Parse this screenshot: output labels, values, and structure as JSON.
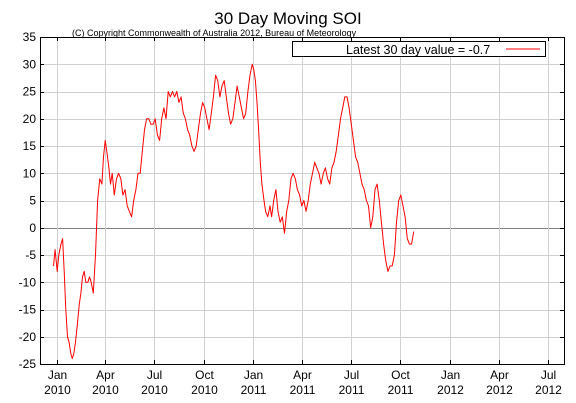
{
  "chart_data": {
    "type": "line",
    "title": "30 Day Moving SOI",
    "subtitle": "(C) Copyright Commonwealth of Australia 2012, Bureau of Meteorology",
    "xlabel": "",
    "ylabel": "",
    "ylim": [
      -25,
      35
    ],
    "yticks": [
      35,
      30,
      25,
      20,
      15,
      10,
      5,
      0,
      -5,
      -10,
      -15,
      -20,
      -25
    ],
    "xlim": [
      "2009-12-01",
      "2012-07-31"
    ],
    "xticks": [
      {
        "date": "2010-01-01",
        "label": [
          "Jan",
          "2010"
        ]
      },
      {
        "date": "2010-04-01",
        "label": [
          "Apr",
          "2010"
        ]
      },
      {
        "date": "2010-07-01",
        "label": [
          "Jul",
          "2010"
        ]
      },
      {
        "date": "2010-10-01",
        "label": [
          "Oct",
          "2010"
        ]
      },
      {
        "date": "2011-01-01",
        "label": [
          "Jan",
          "2011"
        ]
      },
      {
        "date": "2011-04-01",
        "label": [
          "Apr",
          "2011"
        ]
      },
      {
        "date": "2011-07-01",
        "label": [
          "Jul",
          "2011"
        ]
      },
      {
        "date": "2011-10-01",
        "label": [
          "Oct",
          "2011"
        ]
      },
      {
        "date": "2012-01-01",
        "label": [
          "Jan",
          "2012"
        ]
      },
      {
        "date": "2012-04-01",
        "label": [
          "Apr",
          "2012"
        ]
      },
      {
        "date": "2012-07-01",
        "label": [
          "Jul",
          "2012"
        ]
      }
    ],
    "grid": true,
    "zero_line": true,
    "legend_position": "top-right",
    "series": [
      {
        "name": "Latest 30 day value = -0.7",
        "color": "#ff0000",
        "points": [
          [
            "2009-12-26",
            -7
          ],
          [
            "2009-12-29",
            -4
          ],
          [
            "2010-01-02",
            -8
          ],
          [
            "2010-01-05",
            -5
          ],
          [
            "2010-01-09",
            -3
          ],
          [
            "2010-01-12",
            -2
          ],
          [
            "2010-01-15",
            -8
          ],
          [
            "2010-01-18",
            -15
          ],
          [
            "2010-01-21",
            -20
          ],
          [
            "2010-01-24",
            -21
          ],
          [
            "2010-01-27",
            -23
          ],
          [
            "2010-01-30",
            -24
          ],
          [
            "2010-02-02",
            -23
          ],
          [
            "2010-02-05",
            -21
          ],
          [
            "2010-02-08",
            -18
          ],
          [
            "2010-02-12",
            -14
          ],
          [
            "2010-02-15",
            -12
          ],
          [
            "2010-02-18",
            -9
          ],
          [
            "2010-02-21",
            -8
          ],
          [
            "2010-02-24",
            -10
          ],
          [
            "2010-02-28",
            -10
          ],
          [
            "2010-03-03",
            -9
          ],
          [
            "2010-03-06",
            -10
          ],
          [
            "2010-03-10",
            -12
          ],
          [
            "2010-03-14",
            -5
          ],
          [
            "2010-03-18",
            5
          ],
          [
            "2010-03-22",
            9
          ],
          [
            "2010-03-26",
            8
          ],
          [
            "2010-03-29",
            13
          ],
          [
            "2010-04-01",
            16
          ],
          [
            "2010-04-04",
            14
          ],
          [
            "2010-04-08",
            11
          ],
          [
            "2010-04-11",
            8
          ],
          [
            "2010-04-14",
            10
          ],
          [
            "2010-04-18",
            6
          ],
          [
            "2010-04-22",
            9
          ],
          [
            "2010-04-26",
            10
          ],
          [
            "2010-04-30",
            9
          ],
          [
            "2010-05-04",
            6
          ],
          [
            "2010-05-08",
            7
          ],
          [
            "2010-05-12",
            4
          ],
          [
            "2010-05-16",
            3
          ],
          [
            "2010-05-20",
            2
          ],
          [
            "2010-05-24",
            5
          ],
          [
            "2010-05-28",
            7
          ],
          [
            "2010-06-01",
            10
          ],
          [
            "2010-06-05",
            10
          ],
          [
            "2010-06-09",
            14
          ],
          [
            "2010-06-13",
            18
          ],
          [
            "2010-06-17",
            20
          ],
          [
            "2010-06-21",
            20
          ],
          [
            "2010-06-25",
            19
          ],
          [
            "2010-06-29",
            19
          ],
          [
            "2010-07-03",
            20
          ],
          [
            "2010-07-07",
            17
          ],
          [
            "2010-07-11",
            16
          ],
          [
            "2010-07-15",
            20
          ],
          [
            "2010-07-19",
            22
          ],
          [
            "2010-07-23",
            20
          ],
          [
            "2010-07-27",
            25
          ],
          [
            "2010-07-31",
            24
          ],
          [
            "2010-08-04",
            25
          ],
          [
            "2010-08-08",
            24
          ],
          [
            "2010-08-12",
            25
          ],
          [
            "2010-08-16",
            23
          ],
          [
            "2010-08-20",
            24
          ],
          [
            "2010-08-24",
            21
          ],
          [
            "2010-08-28",
            20
          ],
          [
            "2010-09-01",
            18
          ],
          [
            "2010-09-05",
            17
          ],
          [
            "2010-09-09",
            15
          ],
          [
            "2010-09-13",
            14
          ],
          [
            "2010-09-17",
            15
          ],
          [
            "2010-09-21",
            18
          ],
          [
            "2010-09-25",
            21
          ],
          [
            "2010-09-29",
            23
          ],
          [
            "2010-10-03",
            22
          ],
          [
            "2010-10-07",
            20
          ],
          [
            "2010-10-11",
            18
          ],
          [
            "2010-10-15",
            21
          ],
          [
            "2010-10-19",
            24
          ],
          [
            "2010-10-23",
            28
          ],
          [
            "2010-10-27",
            27
          ],
          [
            "2010-10-31",
            24
          ],
          [
            "2010-11-04",
            26
          ],
          [
            "2010-11-08",
            27
          ],
          [
            "2010-11-12",
            24
          ],
          [
            "2010-11-16",
            21
          ],
          [
            "2010-11-20",
            19
          ],
          [
            "2010-11-24",
            20
          ],
          [
            "2010-11-28",
            23
          ],
          [
            "2010-12-02",
            26
          ],
          [
            "2010-12-06",
            24
          ],
          [
            "2010-12-10",
            22
          ],
          [
            "2010-12-14",
            20
          ],
          [
            "2010-12-18",
            21
          ],
          [
            "2010-12-22",
            25
          ],
          [
            "2010-12-26",
            28
          ],
          [
            "2010-12-30",
            30
          ],
          [
            "2011-01-02",
            29
          ],
          [
            "2011-01-05",
            27
          ],
          [
            "2011-01-08",
            23
          ],
          [
            "2011-01-11",
            18
          ],
          [
            "2011-01-14",
            12
          ],
          [
            "2011-01-17",
            8
          ],
          [
            "2011-01-21",
            5
          ],
          [
            "2011-01-24",
            3
          ],
          [
            "2011-01-28",
            2
          ],
          [
            "2011-02-01",
            4
          ],
          [
            "2011-02-04",
            2
          ],
          [
            "2011-02-08",
            5
          ],
          [
            "2011-02-12",
            7
          ],
          [
            "2011-02-16",
            3
          ],
          [
            "2011-02-20",
            1
          ],
          [
            "2011-02-24",
            2
          ],
          [
            "2011-02-28",
            -1
          ],
          [
            "2011-03-04",
            3
          ],
          [
            "2011-03-08",
            5
          ],
          [
            "2011-03-12",
            9
          ],
          [
            "2011-03-16",
            10
          ],
          [
            "2011-03-20",
            9
          ],
          [
            "2011-03-24",
            7
          ],
          [
            "2011-03-28",
            6
          ],
          [
            "2011-04-01",
            4
          ],
          [
            "2011-04-05",
            5
          ],
          [
            "2011-04-09",
            3
          ],
          [
            "2011-04-13",
            5
          ],
          [
            "2011-04-17",
            8
          ],
          [
            "2011-04-21",
            10
          ],
          [
            "2011-04-25",
            12
          ],
          [
            "2011-04-29",
            11
          ],
          [
            "2011-05-03",
            10
          ],
          [
            "2011-05-07",
            8
          ],
          [
            "2011-05-11",
            10
          ],
          [
            "2011-05-15",
            11
          ],
          [
            "2011-05-19",
            9
          ],
          [
            "2011-05-23",
            8
          ],
          [
            "2011-05-27",
            11
          ],
          [
            "2011-05-31",
            12
          ],
          [
            "2011-06-04",
            14
          ],
          [
            "2011-06-08",
            17
          ],
          [
            "2011-06-12",
            20
          ],
          [
            "2011-06-16",
            22
          ],
          [
            "2011-06-20",
            24
          ],
          [
            "2011-06-24",
            24
          ],
          [
            "2011-06-28",
            22
          ],
          [
            "2011-07-02",
            19
          ],
          [
            "2011-07-06",
            16
          ],
          [
            "2011-07-10",
            13
          ],
          [
            "2011-07-14",
            12
          ],
          [
            "2011-07-18",
            10
          ],
          [
            "2011-07-22",
            8
          ],
          [
            "2011-07-26",
            7
          ],
          [
            "2011-07-30",
            5
          ],
          [
            "2011-08-03",
            4
          ],
          [
            "2011-08-07",
            0
          ],
          [
            "2011-08-11",
            2
          ],
          [
            "2011-08-15",
            7
          ],
          [
            "2011-08-19",
            8
          ],
          [
            "2011-08-23",
            5
          ],
          [
            "2011-08-27",
            1
          ],
          [
            "2011-08-31",
            -3
          ],
          [
            "2011-09-04",
            -6
          ],
          [
            "2011-09-08",
            -8
          ],
          [
            "2011-09-12",
            -7
          ],
          [
            "2011-09-16",
            -7
          ],
          [
            "2011-09-20",
            -5
          ],
          [
            "2011-09-24",
            1
          ],
          [
            "2011-09-28",
            5
          ],
          [
            "2011-10-02",
            6
          ],
          [
            "2011-10-06",
            4
          ],
          [
            "2011-10-10",
            2
          ],
          [
            "2011-10-14",
            -2
          ],
          [
            "2011-10-18",
            -3
          ],
          [
            "2011-10-22",
            -3
          ],
          [
            "2011-10-26",
            -0.7
          ]
        ]
      }
    ]
  }
}
